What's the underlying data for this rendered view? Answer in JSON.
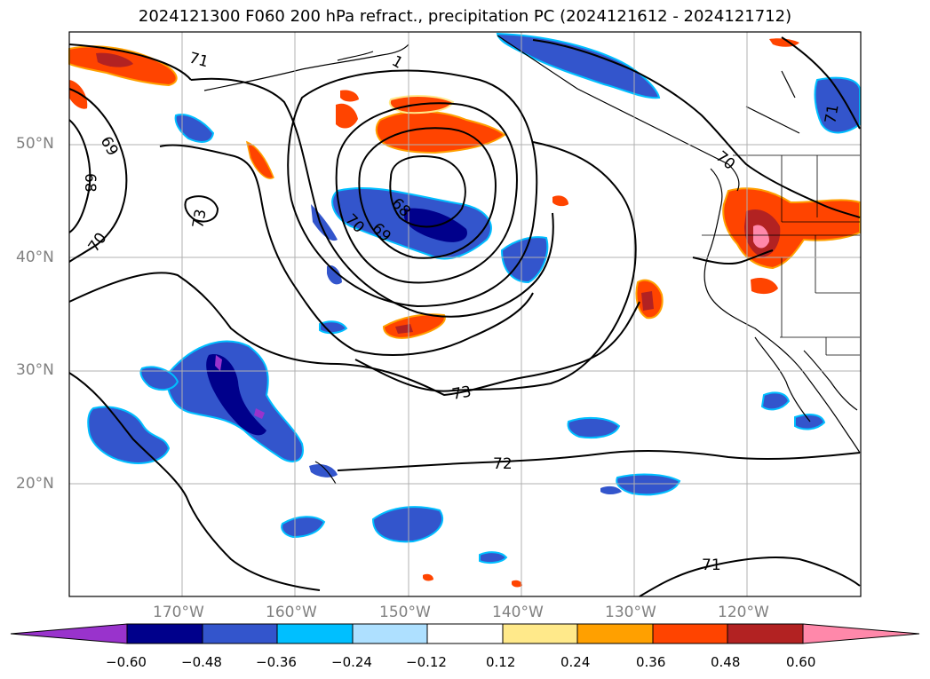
{
  "title": "2024121300 F060 200 hPa refract., precipitation PC (2024121612 - 2024121712)",
  "lat_labels": [
    "50°N",
    "40°N",
    "30°N",
    "20°N"
  ],
  "lon_labels": [
    "170°W",
    "160°W",
    "150°W",
    "140°W",
    "130°W",
    "120°W"
  ],
  "contour_labels": [
    "71",
    "1",
    "69",
    "68",
    "70",
    "73",
    "70",
    "69",
    "68",
    "73",
    "72",
    "71",
    "70",
    "71"
  ],
  "colorbar": {
    "ticks": [
      "−0.60",
      "−0.48",
      "−0.36",
      "−0.24",
      "−0.12",
      "0.12",
      "0.24",
      "0.36",
      "0.48",
      "0.60"
    ],
    "colors": [
      "#9933cc",
      "#00008b",
      "#3355cc",
      "#00bfff",
      "#aee0ff",
      "#ffffff",
      "#ffe98a",
      "#ffa000",
      "#ff4400",
      "#b22222",
      "#ff88aa"
    ]
  }
}
